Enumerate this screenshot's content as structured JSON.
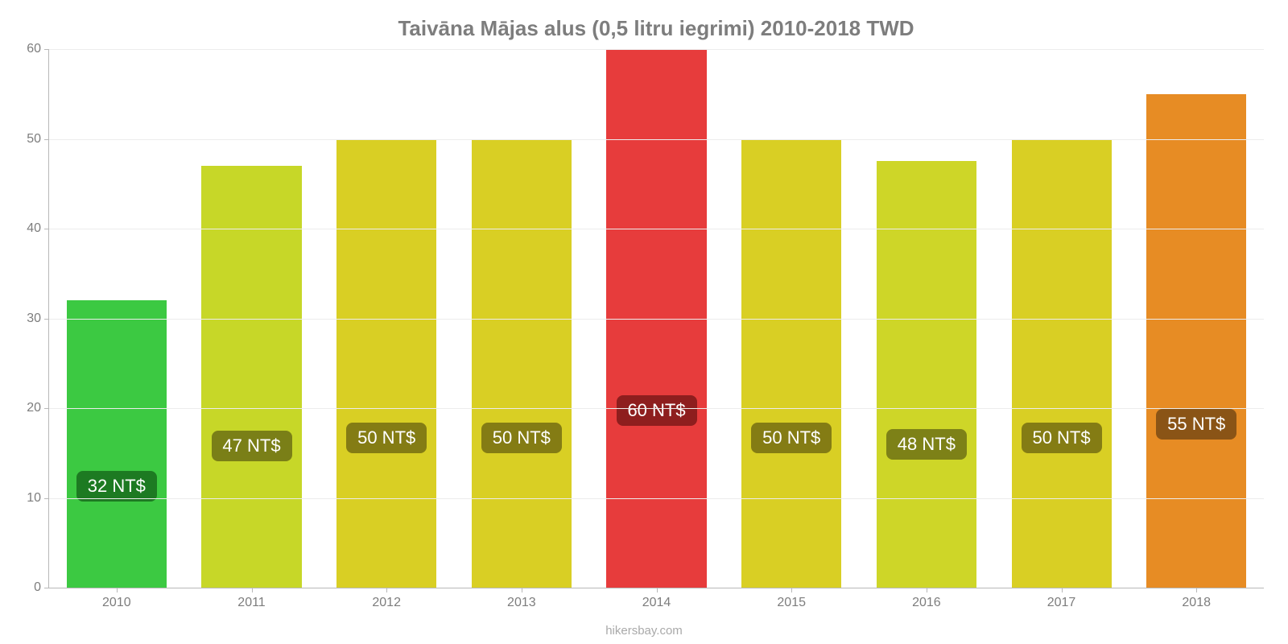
{
  "chart": {
    "type": "bar",
    "title": "Taivāna Mājas alus (0,5 litru iegrimi) 2010-2018 TWD",
    "title_color": "#7d7d7d",
    "title_fontsize": 26,
    "background_color": "#ffffff",
    "axis_color": "#b8b8b8",
    "grid_color": "#ececec",
    "tick_label_color": "#7d7d7d",
    "tick_fontsize": 16,
    "bar_width_ratio": 0.74,
    "value_label_fontsize": 22,
    "ylim": [
      0,
      60
    ],
    "ytick_step": 10,
    "yticks": [
      {
        "pos": 0,
        "label": "0"
      },
      {
        "pos": 10,
        "label": "10"
      },
      {
        "pos": 20,
        "label": "20"
      },
      {
        "pos": 30,
        "label": "30"
      },
      {
        "pos": 40,
        "label": "40"
      },
      {
        "pos": 50,
        "label": "50"
      },
      {
        "pos": 60,
        "label": "60"
      }
    ],
    "categories": [
      "2010",
      "2011",
      "2012",
      "2013",
      "2014",
      "2015",
      "2016",
      "2017",
      "2018"
    ],
    "values": [
      32,
      47,
      50,
      50,
      60,
      50,
      47.5,
      50,
      55
    ],
    "display_labels": [
      "32 NT$",
      "47 NT$",
      "50 NT$",
      "50 NT$",
      "60 NT$",
      "50 NT$",
      "48 NT$",
      "50 NT$",
      "55 NT$"
    ],
    "bar_colors": [
      "#3cc942",
      "#c7d728",
      "#d9cf24",
      "#d9cf24",
      "#e73c3c",
      "#d9cf24",
      "#ced628",
      "#d9cf24",
      "#e78c24"
    ],
    "label_bg_colors": [
      "#1d7a22",
      "#7a7f17",
      "#847c14",
      "#847c14",
      "#8e1e1e",
      "#847c14",
      "#7d8117",
      "#847c14",
      "#8a5416"
    ],
    "attribution": "hikersbay.com",
    "attribution_color": "#a9a9a9"
  }
}
